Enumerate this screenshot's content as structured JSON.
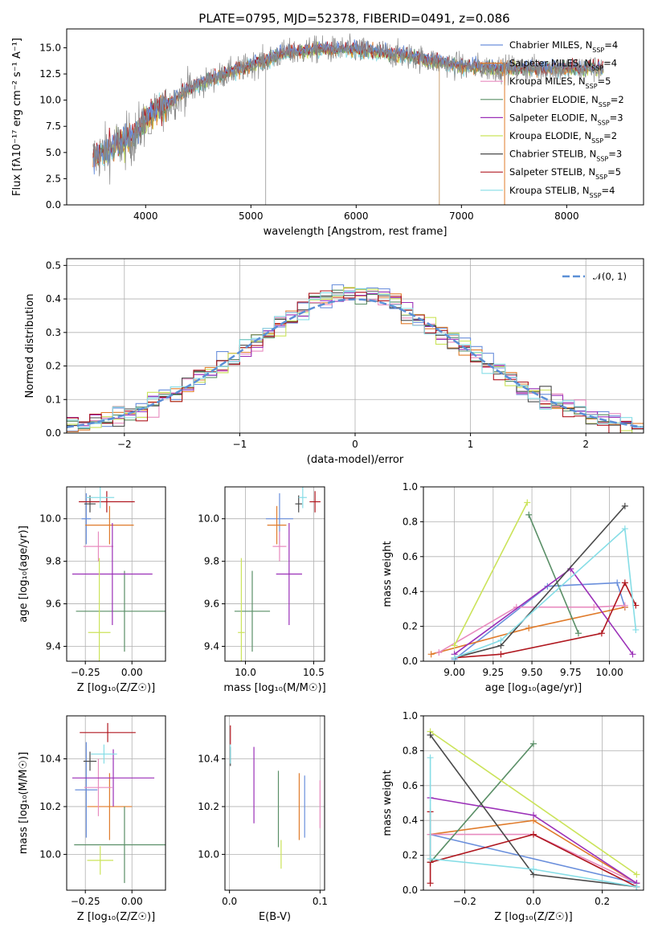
{
  "figure": {
    "title": "PLATE=0795, MJD=52378, FIBERID=0491, z=0.086"
  },
  "colors": {
    "Chabrier MILES": "#6a8fdc",
    "Salpeter MILES": "#e07b2b",
    "Kroupa MILES": "#e88bbf",
    "Chabrier ELODIE": "#5a8f67",
    "Salpeter ELODIE": "#9b30b8",
    "Kroupa ELODIE": "#cbe35a",
    "Chabrier STELIB": "#4a4a4a",
    "Salpeter STELIB": "#b01820",
    "Kroupa STELIB": "#86dde6",
    "data": "#888888",
    "gaussian": "#5b8fd6"
  },
  "chart_data": [
    {
      "id": "spectrum",
      "type": "line",
      "xlabel": "wavelength [Angstrom, rest frame]",
      "ylabel": "Flux [fλ10⁻¹⁷ erg cm⁻² s⁻¹ A⁻¹]",
      "xlim": [
        3250,
        8730
      ],
      "ylim": [
        0,
        16.8
      ],
      "xticks": [
        4000,
        5000,
        6000,
        7000,
        8000
      ],
      "yticks": [
        0.0,
        2.5,
        5.0,
        7.5,
        10.0,
        12.5,
        15.0
      ],
      "legend_position": "right",
      "legend": [
        {
          "name": "Chabrier MILES",
          "label": "Chabrier MILES, N",
          "sub": "SSP",
          "n": "=4"
        },
        {
          "name": "Salpeter MILES",
          "label": "Salpeter MILES, N",
          "sub": "SSP",
          "n": "=4"
        },
        {
          "name": "Kroupa MILES",
          "label": "Kroupa MILES, N",
          "sub": "SSP",
          "n": "=5"
        },
        {
          "name": "Chabrier ELODIE",
          "label": "Chabrier ELODIE, N",
          "sub": "SSP",
          "n": "=2"
        },
        {
          "name": "Salpeter ELODIE",
          "label": "Salpeter ELODIE, N",
          "sub": "SSP",
          "n": "=3"
        },
        {
          "name": "Kroupa ELODIE",
          "label": "Kroupa ELODIE, N",
          "sub": "SSP",
          "n": "=2"
        },
        {
          "name": "Chabrier STELIB",
          "label": "Chabrier STELIB, N",
          "sub": "SSP",
          "n": "=3"
        },
        {
          "name": "Salpeter STELIB",
          "label": "Salpeter STELIB, N",
          "sub": "SSP",
          "n": "=5"
        },
        {
          "name": "Kroupa STELIB",
          "label": "Kroupa STELIB, N",
          "sub": "SSP",
          "n": "=4"
        }
      ],
      "continuum_nodes": [
        [
          3500,
          4.5
        ],
        [
          3700,
          5.5
        ],
        [
          3900,
          6.5
        ],
        [
          4000,
          8.2
        ],
        [
          4200,
          9.5
        ],
        [
          4400,
          11.0
        ],
        [
          4700,
          12.3
        ],
        [
          5000,
          13.3
        ],
        [
          5300,
          14.4
        ],
        [
          5600,
          14.8
        ],
        [
          6000,
          14.8
        ],
        [
          6500,
          14.2
        ],
        [
          7000,
          13.2
        ],
        [
          7400,
          13.0
        ],
        [
          7800,
          13.0
        ],
        [
          8200,
          13.0
        ],
        [
          8350,
          13.0
        ]
      ],
      "data_range": [
        3500,
        8350
      ],
      "data_noise_sigma": 1.3,
      "vertical_lines": [
        5140,
        6790,
        7410
      ]
    },
    {
      "id": "residuals",
      "type": "histogram",
      "xlabel": "(data-model)/error",
      "ylabel": "Normed distribution",
      "xlim": [
        -2.5,
        2.5
      ],
      "ylim": [
        0,
        0.52
      ],
      "xticks": [
        -2,
        -1,
        0,
        1,
        2
      ],
      "yticks": [
        0.0,
        0.1,
        0.2,
        0.3,
        0.4,
        0.5
      ],
      "bin_width": 0.1,
      "grid": true,
      "legend_position": "top-right",
      "gaussian_label": "𝒩(0, 1)"
    },
    {
      "id": "age-vs-Z",
      "type": "errorbar",
      "xlabel": "Z [log₁₀(Z/Z☉)]",
      "ylabel": "age  [log₁₀(age/yr)]",
      "xlim": [
        -0.35,
        0.18
      ],
      "ylim": [
        9.33,
        10.15
      ],
      "xticks": [
        -0.25,
        0.0
      ],
      "yticks": [
        9.4,
        9.6,
        9.8,
        10.0
      ],
      "grid": true,
      "points": [
        {
          "s": "Chabrier MILES",
          "x": -0.245,
          "y": 10.0,
          "xe": 0.025,
          "ye": 0.12
        },
        {
          "s": "Salpeter MILES",
          "x": -0.12,
          "y": 9.97,
          "xe": 0.13,
          "ye": 0.09
        },
        {
          "s": "Kroupa MILES",
          "x": -0.18,
          "y": 9.87,
          "xe": 0.08,
          "ye": 0.07
        },
        {
          "s": "Chabrier ELODIE",
          "x": -0.04,
          "y": 9.565,
          "xe": 0.26,
          "ye": 0.19
        },
        {
          "s": "Salpeter ELODIE",
          "x": -0.105,
          "y": 9.74,
          "xe": 0.215,
          "ye": 0.24
        },
        {
          "s": "Kroupa ELODIE",
          "x": -0.175,
          "y": 9.465,
          "xe": 0.06,
          "ye": 0.35
        },
        {
          "s": "Chabrier STELIB",
          "x": -0.225,
          "y": 10.07,
          "xe": 0.03,
          "ye": 0.04
        },
        {
          "s": "Salpeter STELIB",
          "x": -0.135,
          "y": 10.08,
          "xe": 0.15,
          "ye": 0.05
        },
        {
          "s": "Kroupa STELIB",
          "x": -0.17,
          "y": 10.1,
          "xe": 0.075,
          "ye": 0.05
        }
      ]
    },
    {
      "id": "age-vs-mass",
      "type": "errorbar",
      "xlabel": "mass [log₁₀(M/M☉)]",
      "ylabel": "",
      "xlim": [
        9.85,
        10.58
      ],
      "ylim": [
        9.33,
        10.15
      ],
      "xticks": [
        10.0,
        10.5
      ],
      "yticks": [
        9.4,
        9.6,
        9.8,
        10.0
      ],
      "grid": true,
      "points": [
        {
          "s": "Chabrier MILES",
          "x": 10.25,
          "y": 10.0,
          "xe": 0.1,
          "ye": 0.12
        },
        {
          "s": "Salpeter MILES",
          "x": 10.23,
          "y": 9.97,
          "xe": 0.07,
          "ye": 0.09
        },
        {
          "s": "Kroupa MILES",
          "x": 10.25,
          "y": 9.87,
          "xe": 0.05,
          "ye": 0.07
        },
        {
          "s": "Chabrier ELODIE",
          "x": 10.05,
          "y": 9.565,
          "xe": 0.13,
          "ye": 0.19
        },
        {
          "s": "Salpeter ELODIE",
          "x": 10.32,
          "y": 9.74,
          "xe": 0.095,
          "ye": 0.24
        },
        {
          "s": "Kroupa ELODIE",
          "x": 9.97,
          "y": 9.465,
          "xe": 0.025,
          "ye": 0.35
        },
        {
          "s": "Chabrier STELIB",
          "x": 10.39,
          "y": 10.07,
          "xe": 0.025,
          "ye": 0.04
        },
        {
          "s": "Salpeter STELIB",
          "x": 10.51,
          "y": 10.08,
          "xe": 0.04,
          "ye": 0.05
        },
        {
          "s": "Kroupa STELIB",
          "x": 10.42,
          "y": 10.1,
          "xe": 0.03,
          "ye": 0.05
        }
      ]
    },
    {
      "id": "weight-vs-age",
      "type": "line",
      "xlabel": "age  [log₁₀(age/yr)]",
      "ylabel": "mass weight",
      "xlim": [
        8.8,
        10.22
      ],
      "ylim": [
        0,
        1.0
      ],
      "xticks": [
        9.0,
        9.25,
        9.5,
        9.75,
        10.0
      ],
      "yticks": [
        0.0,
        0.2,
        0.4,
        0.6,
        0.8,
        1.0
      ],
      "grid": true,
      "series": [
        {
          "s": "Chabrier MILES",
          "points": [
            [
              9.0,
              0.01
            ],
            [
              9.6,
              0.43
            ],
            [
              10.05,
              0.45
            ],
            [
              10.1,
              0.31
            ]
          ]
        },
        {
          "s": "Salpeter MILES",
          "points": [
            [
              8.85,
              0.04
            ],
            [
              9.48,
              0.19
            ],
            [
              10.1,
              0.31
            ]
          ]
        },
        {
          "s": "Kroupa MILES",
          "points": [
            [
              8.9,
              0.05
            ],
            [
              9.4,
              0.31
            ],
            [
              9.9,
              0.31
            ],
            [
              10.1,
              0.32
            ]
          ]
        },
        {
          "s": "Chabrier ELODIE",
          "points": [
            [
              9.48,
              0.84
            ],
            [
              9.8,
              0.16
            ]
          ]
        },
        {
          "s": "Salpeter ELODIE",
          "points": [
            [
              9.0,
              0.04
            ],
            [
              9.75,
              0.53
            ],
            [
              10.15,
              0.04
            ]
          ]
        },
        {
          "s": "Kroupa ELODIE",
          "points": [
            [
              9.0,
              0.09
            ],
            [
              9.47,
              0.91
            ]
          ]
        },
        {
          "s": "Chabrier STELIB",
          "points": [
            [
              9.0,
              0.02
            ],
            [
              9.3,
              0.09
            ],
            [
              10.1,
              0.89
            ]
          ]
        },
        {
          "s": "Salpeter STELIB",
          "points": [
            [
              9.0,
              0.02
            ],
            [
              9.3,
              0.04
            ],
            [
              9.95,
              0.16
            ],
            [
              10.1,
              0.45
            ],
            [
              10.17,
              0.32
            ]
          ]
        },
        {
          "s": "Kroupa STELIB",
          "points": [
            [
              9.0,
              0.02
            ],
            [
              9.3,
              0.12
            ],
            [
              10.1,
              0.76
            ],
            [
              10.17,
              0.18
            ]
          ]
        }
      ]
    },
    {
      "id": "mass-vs-Z",
      "type": "errorbar",
      "xlabel": "Z [log₁₀(Z/Z☉)]",
      "ylabel": "mass [log₁₀(M/M☉)]",
      "xlim": [
        -0.35,
        0.18
      ],
      "ylim": [
        9.85,
        10.58
      ],
      "xticks": [
        -0.25,
        0.0
      ],
      "yticks": [
        10.0,
        10.2,
        10.4
      ],
      "grid": true,
      "points": [
        {
          "s": "Chabrier MILES",
          "x": -0.245,
          "y": 10.27,
          "xe": 0.06,
          "ye": 0.2
        },
        {
          "s": "Salpeter MILES",
          "x": -0.12,
          "y": 10.2,
          "xe": 0.12,
          "ye": 0.14
        },
        {
          "s": "Kroupa MILES",
          "x": -0.18,
          "y": 10.28,
          "xe": 0.075,
          "ye": 0.12
        },
        {
          "s": "Chabrier ELODIE",
          "x": -0.04,
          "y": 10.04,
          "xe": 0.27,
          "ye": 0.16
        },
        {
          "s": "Salpeter ELODIE",
          "x": -0.1,
          "y": 10.32,
          "xe": 0.22,
          "ye": 0.12
        },
        {
          "s": "Kroupa ELODIE",
          "x": -0.17,
          "y": 9.975,
          "xe": 0.07,
          "ye": 0.06
        },
        {
          "s": "Chabrier STELIB",
          "x": -0.225,
          "y": 10.39,
          "xe": 0.035,
          "ye": 0.04
        },
        {
          "s": "Salpeter STELIB",
          "x": -0.13,
          "y": 10.51,
          "xe": 0.15,
          "ye": 0.04
        },
        {
          "s": "Kroupa STELIB",
          "x": -0.15,
          "y": 10.42,
          "xe": 0.07,
          "ye": 0.04
        }
      ]
    },
    {
      "id": "mass-vs-ebv",
      "type": "errorbar",
      "xlabel": "E(B-V)",
      "ylabel": "",
      "xlim": [
        -0.005,
        0.105
      ],
      "ylim": [
        9.85,
        10.58
      ],
      "xticks": [
        0.0,
        0.1
      ],
      "yticks": [
        10.0,
        10.2,
        10.4
      ],
      "grid": true,
      "points": [
        {
          "s": "Chabrier MILES",
          "x": 0.083,
          "y": 10.2,
          "xe": 0,
          "ye": 0.13
        },
        {
          "s": "Salpeter MILES",
          "x": 0.077,
          "y": 10.2,
          "xe": 0,
          "ye": 0.14
        },
        {
          "s": "Kroupa MILES",
          "x": 0.1,
          "y": 10.21,
          "xe": 0,
          "ye": 0.1
        },
        {
          "s": "Chabrier ELODIE",
          "x": 0.054,
          "y": 10.19,
          "xe": 0,
          "ye": 0.16
        },
        {
          "s": "Salpeter ELODIE",
          "x": 0.027,
          "y": 10.29,
          "xe": 0,
          "ye": 0.16
        },
        {
          "s": "Kroupa ELODIE",
          "x": 0.057,
          "y": 10.0,
          "xe": 0,
          "ye": 0.06
        },
        {
          "s": "Chabrier STELIB",
          "x": 0.001,
          "y": 10.41,
          "xe": 0,
          "ye": 0.04
        },
        {
          "s": "Salpeter STELIB",
          "x": 0.001,
          "y": 10.5,
          "xe": 0,
          "ye": 0.04
        },
        {
          "s": "Kroupa STELIB",
          "x": 0.001,
          "y": 10.42,
          "xe": 0,
          "ye": 0.04
        }
      ]
    },
    {
      "id": "weight-vs-Z",
      "type": "line",
      "xlabel": "Z [log₁₀(Z/Z☉)]",
      "ylabel": "mass weight",
      "xlim": [
        -0.32,
        0.32
      ],
      "ylim": [
        0,
        1.0
      ],
      "xticks": [
        -0.2,
        0.0,
        0.2
      ],
      "yticks": [
        0.0,
        0.2,
        0.4,
        0.6,
        0.8,
        1.0
      ],
      "grid": true,
      "series": [
        {
          "s": "Chabrier MILES",
          "points": [
            [
              -0.3,
              0.32
            ],
            [
              0.3,
              0.04
            ]
          ]
        },
        {
          "s": "Salpeter MILES",
          "points": [
            [
              -0.3,
              0.32
            ],
            [
              0.0,
              0.4
            ],
            [
              0.3,
              0.04
            ]
          ]
        },
        {
          "s": "Kroupa MILES",
          "points": [
            [
              -0.3,
              0.32
            ],
            [
              0.0,
              0.32
            ],
            [
              0.3,
              0.04
            ]
          ]
        },
        {
          "s": "Chabrier ELODIE",
          "points": [
            [
              -0.3,
              0.16
            ],
            [
              0.0,
              0.84
            ]
          ]
        },
        {
          "s": "Salpeter ELODIE",
          "points": [
            [
              -0.3,
              0.53
            ],
            [
              0.0,
              0.43
            ],
            [
              0.3,
              0.04
            ]
          ]
        },
        {
          "s": "Kroupa ELODIE",
          "points": [
            [
              -0.3,
              0.91
            ],
            [
              0.3,
              0.09
            ]
          ]
        },
        {
          "s": "Chabrier STELIB",
          "points": [
            [
              -0.3,
              0.89
            ],
            [
              0.0,
              0.09
            ],
            [
              0.3,
              0.02
            ]
          ]
        },
        {
          "s": "Salpeter STELIB",
          "points": [
            [
              -0.3,
              0.04
            ],
            [
              -0.3,
              0.45
            ],
            [
              -0.3,
              0.16
            ],
            [
              0.0,
              0.32
            ],
            [
              0.3,
              0.02
            ]
          ]
        },
        {
          "s": "Kroupa STELIB",
          "points": [
            [
              -0.3,
              0.76
            ],
            [
              -0.3,
              0.18
            ],
            [
              0.0,
              0.12
            ],
            [
              0.3,
              0.02
            ]
          ]
        }
      ]
    }
  ]
}
